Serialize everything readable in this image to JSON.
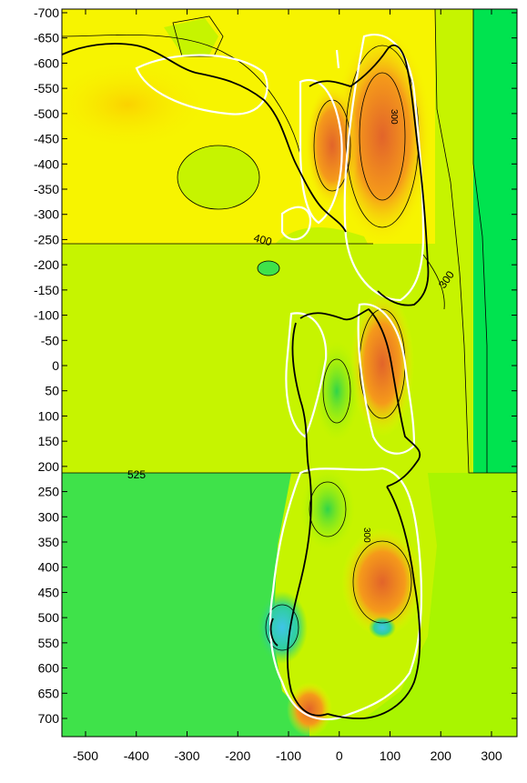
{
  "map": {
    "y_axis_labels": [
      "-700",
      "-650",
      "-600",
      "-550",
      "-500",
      "-450",
      "-400",
      "-350",
      "-300",
      "-250",
      "-200",
      "-150",
      "-100",
      "-50",
      "0",
      "50",
      "100",
      "150",
      "200",
      "250",
      "300",
      "350",
      "400",
      "450",
      "500",
      "550",
      "600",
      "650",
      "700"
    ],
    "x_axis_labels": [
      "-500",
      "-400",
      "-300",
      "-200",
      "-100",
      "0",
      "100",
      "200",
      "300"
    ],
    "contour_labels": [
      "400",
      "300",
      "525",
      "300",
      "300"
    ],
    "colors": {
      "yellow": "#f7f400",
      "yellow_green": "#c6f400",
      "lime": "#a9f500",
      "green": "#3fe24a",
      "bright_green": "#00e34f",
      "orange": "#f59a1a",
      "dark_orange": "#e2642a",
      "teal": "#2fcf9a",
      "cyan": "#3fd3e8",
      "coast": "#000000",
      "outline": "#ffffff"
    }
  }
}
